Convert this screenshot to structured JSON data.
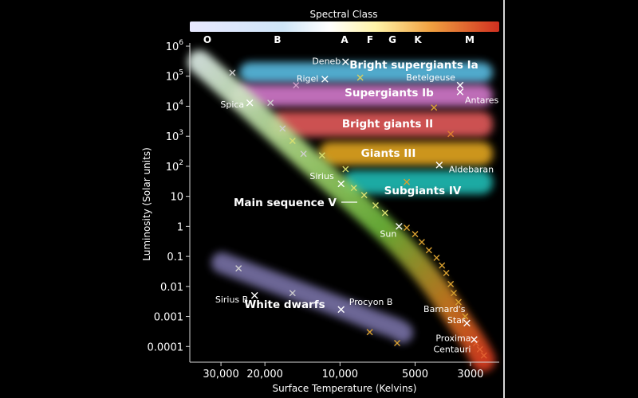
{
  "chart_data": {
    "type": "scatter",
    "title": "Spectral Class",
    "spectral_classes": [
      "O",
      "B",
      "A",
      "F",
      "G",
      "K",
      "M"
    ],
    "xlabel": "Surface Temperature (Kelvins)",
    "ylabel": "Luminosity (Solar units)",
    "x_scale": "log-reversed",
    "y_scale": "log",
    "xlim": [
      40000,
      2300
    ],
    "ylim": [
      3e-05,
      1000000
    ],
    "x_ticks": [
      {
        "value": 30000,
        "label": "30,000"
      },
      {
        "value": 20000,
        "label": "20,000"
      },
      {
        "value": 10000,
        "label": "10,000"
      },
      {
        "value": 5000,
        "label": "5000"
      },
      {
        "value": 3000,
        "label": "3000"
      }
    ],
    "y_ticks": [
      {
        "value": 1000000,
        "base": "10",
        "exp": "6"
      },
      {
        "value": 100000,
        "base": "10",
        "exp": "5"
      },
      {
        "value": 10000,
        "base": "10",
        "exp": "4"
      },
      {
        "value": 1000,
        "base": "10",
        "exp": "3"
      },
      {
        "value": 100,
        "base": "10",
        "exp": "2"
      },
      {
        "value": 10,
        "base": "10",
        "exp": ""
      },
      {
        "value": 1,
        "base": "1",
        "exp": ""
      },
      {
        "value": 0.1,
        "base": "0.1",
        "exp": ""
      },
      {
        "value": 0.01,
        "base": "0.01",
        "exp": ""
      },
      {
        "value": 0.001,
        "base": "0.001",
        "exp": ""
      },
      {
        "value": 0.0001,
        "base": "0.0001",
        "exp": ""
      }
    ],
    "regions": [
      {
        "label": "Bright supergiants Ia",
        "color": "#5ec8f0"
      },
      {
        "label": "Supergiants Ib",
        "color": "#e080d8"
      },
      {
        "label": "Bright giants II",
        "color": "#f06060"
      },
      {
        "label": "Giants III",
        "color": "#f0b020"
      },
      {
        "label": "Subgiants IV",
        "color": "#20c8c0"
      },
      {
        "label": "Main sequence V",
        "color": "#7fc34a"
      },
      {
        "label": "White dwarfs",
        "color": "#9088c8"
      }
    ],
    "named_stars": [
      {
        "name": "Deneb",
        "x": 9500,
        "y": 300000
      },
      {
        "name": "Rigel",
        "x": 11500,
        "y": 80000
      },
      {
        "name": "Betelgeuse",
        "x": 3300,
        "y": 50000
      },
      {
        "name": "Antares",
        "x": 3300,
        "y": 30000
      },
      {
        "name": "Spica",
        "x": 23000,
        "y": 13000
      },
      {
        "name": "Aldebaran",
        "x": 4000,
        "y": 110
      },
      {
        "name": "Sirius",
        "x": 9900,
        "y": 26
      },
      {
        "name": "Sun",
        "x": 5800,
        "y": 1
      },
      {
        "name": "Sirius B",
        "x": 22000,
        "y": 0.005
      },
      {
        "name": "Procyon B",
        "x": 9900,
        "y": 0.0017
      },
      {
        "name": "Barnard's Star",
        "x": 3100,
        "y": 0.0006
      },
      {
        "name": "Proxima Centauri",
        "x": 2900,
        "y": 0.00017
      }
    ],
    "background_stars": [
      {
        "x": 27000,
        "y": 130000,
        "c": "#cfcfcf"
      },
      {
        "x": 19000,
        "y": 13000,
        "c": "#cfcfcf"
      },
      {
        "x": 17000,
        "y": 1800,
        "c": "#cfcfcf"
      },
      {
        "x": 15500,
        "y": 700,
        "c": "#d8e070"
      },
      {
        "x": 14000,
        "y": 260,
        "c": "#cfcfcf"
      },
      {
        "x": 11800,
        "y": 230,
        "c": "#d8e070"
      },
      {
        "x": 9500,
        "y": 80,
        "c": "#d8e070"
      },
      {
        "x": 8800,
        "y": 19,
        "c": "#d8e070"
      },
      {
        "x": 8000,
        "y": 11,
        "c": "#d8e070"
      },
      {
        "x": 7200,
        "y": 5,
        "c": "#d8e070"
      },
      {
        "x": 6600,
        "y": 2.8,
        "c": "#d8e070"
      },
      {
        "x": 5400,
        "y": 0.9,
        "c": "#d8a030"
      },
      {
        "x": 5000,
        "y": 0.55,
        "c": "#d8a030"
      },
      {
        "x": 4700,
        "y": 0.3,
        "c": "#d8a030"
      },
      {
        "x": 4400,
        "y": 0.16,
        "c": "#d8a030"
      },
      {
        "x": 4100,
        "y": 0.09,
        "c": "#d8a030"
      },
      {
        "x": 3900,
        "y": 0.05,
        "c": "#d8a030"
      },
      {
        "x": 3750,
        "y": 0.028,
        "c": "#d8a030"
      },
      {
        "x": 3600,
        "y": 0.012,
        "c": "#d8a030"
      },
      {
        "x": 3500,
        "y": 0.006,
        "c": "#d8a030"
      },
      {
        "x": 3350,
        "y": 0.003,
        "c": "#d8a030"
      },
      {
        "x": 3150,
        "y": 0.001,
        "c": "#d8a030"
      },
      {
        "x": 2850,
        "y": 0.00013,
        "c": "#e06030"
      },
      {
        "x": 2750,
        "y": 8e-05,
        "c": "#e06030"
      },
      {
        "x": 2650,
        "y": 5e-05,
        "c": "#e06030"
      },
      {
        "x": 15000,
        "y": 50000,
        "c": "#d0a0c8"
      },
      {
        "x": 8300,
        "y": 90000,
        "c": "#d8d060"
      },
      {
        "x": 4200,
        "y": 9000,
        "c": "#d8a030"
      },
      {
        "x": 3600,
        "y": 1200,
        "c": "#e08030"
      },
      {
        "x": 5400,
        "y": 30,
        "c": "#d8a030"
      },
      {
        "x": 25500,
        "y": 0.04,
        "c": "#cfcfcf"
      },
      {
        "x": 15500,
        "y": 0.006,
        "c": "#cfcfcf"
      },
      {
        "x": 7600,
        "y": 0.0003,
        "c": "#d8a030"
      },
      {
        "x": 5900,
        "y": 0.00013,
        "c": "#d8a030"
      }
    ]
  }
}
